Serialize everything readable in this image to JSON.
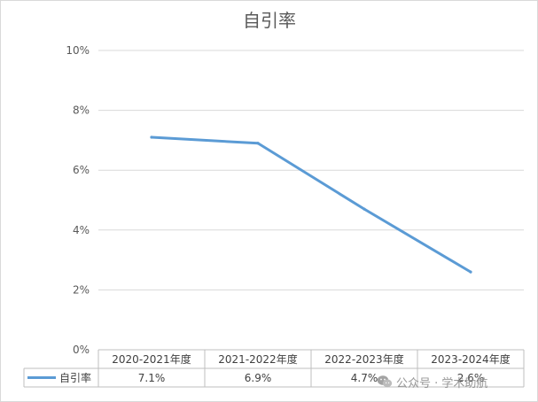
{
  "chart_data": {
    "type": "line",
    "title": "自引率",
    "categories": [
      "2020-2021年度",
      "2021-2022年度",
      "2022-2023年度",
      "2023-2024年度"
    ],
    "series": [
      {
        "name": "自引率",
        "values": [
          7.1,
          6.9,
          4.7,
          2.6
        ],
        "labels": [
          "7.1%",
          "6.9%",
          "4.7%",
          "2.6%"
        ],
        "color": "#5b9bd5"
      }
    ],
    "y_ticks": [
      "0%",
      "2%",
      "4%",
      "6%",
      "8%",
      "10%"
    ],
    "ylim": [
      0,
      10
    ],
    "grid": true,
    "legend": "data-table",
    "data_table": true
  },
  "watermark": {
    "text": "公众号 · 学术助航",
    "icon": "wechat-icon"
  }
}
